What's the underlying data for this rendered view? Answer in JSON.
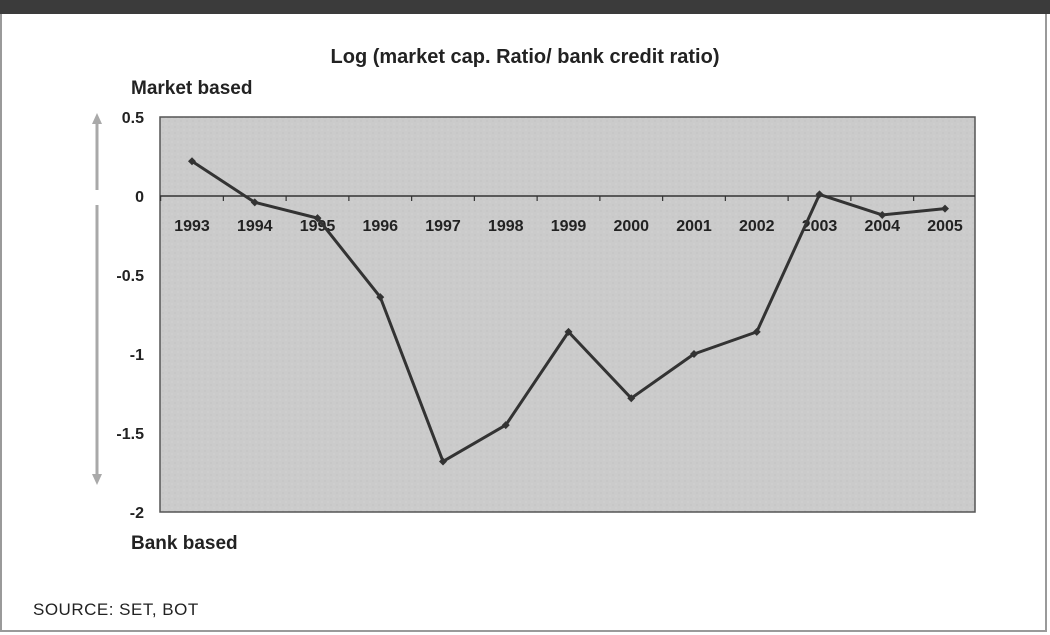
{
  "chart_data": {
    "type": "line",
    "title": "Log (market cap. Ratio/ bank credit ratio)",
    "top_annotation": "Market based",
    "bottom_annotation": "Bank based",
    "source": "SOURCE: SET, BOT",
    "x": [
      "1993",
      "1994",
      "1995",
      "1996",
      "1997",
      "1998",
      "1999",
      "2000",
      "2001",
      "2002",
      "2003",
      "2004",
      "2005"
    ],
    "series": [
      {
        "values": [
          0.22,
          -0.04,
          -0.14,
          -0.64,
          -1.68,
          -1.45,
          -0.86,
          -1.28,
          -1.0,
          -0.86,
          0.01,
          -0.12,
          -0.08
        ]
      }
    ],
    "y_ticks": [
      "0.5",
      "0",
      "-0.5",
      "-1",
      "-1.5",
      "-2"
    ],
    "ylim": [
      -2,
      0.5
    ],
    "grid": false,
    "legend": "none",
    "colors": {
      "line": "#333333",
      "plot_bg": "#cbcbcb",
      "arrow": "#a9a9a9"
    }
  }
}
